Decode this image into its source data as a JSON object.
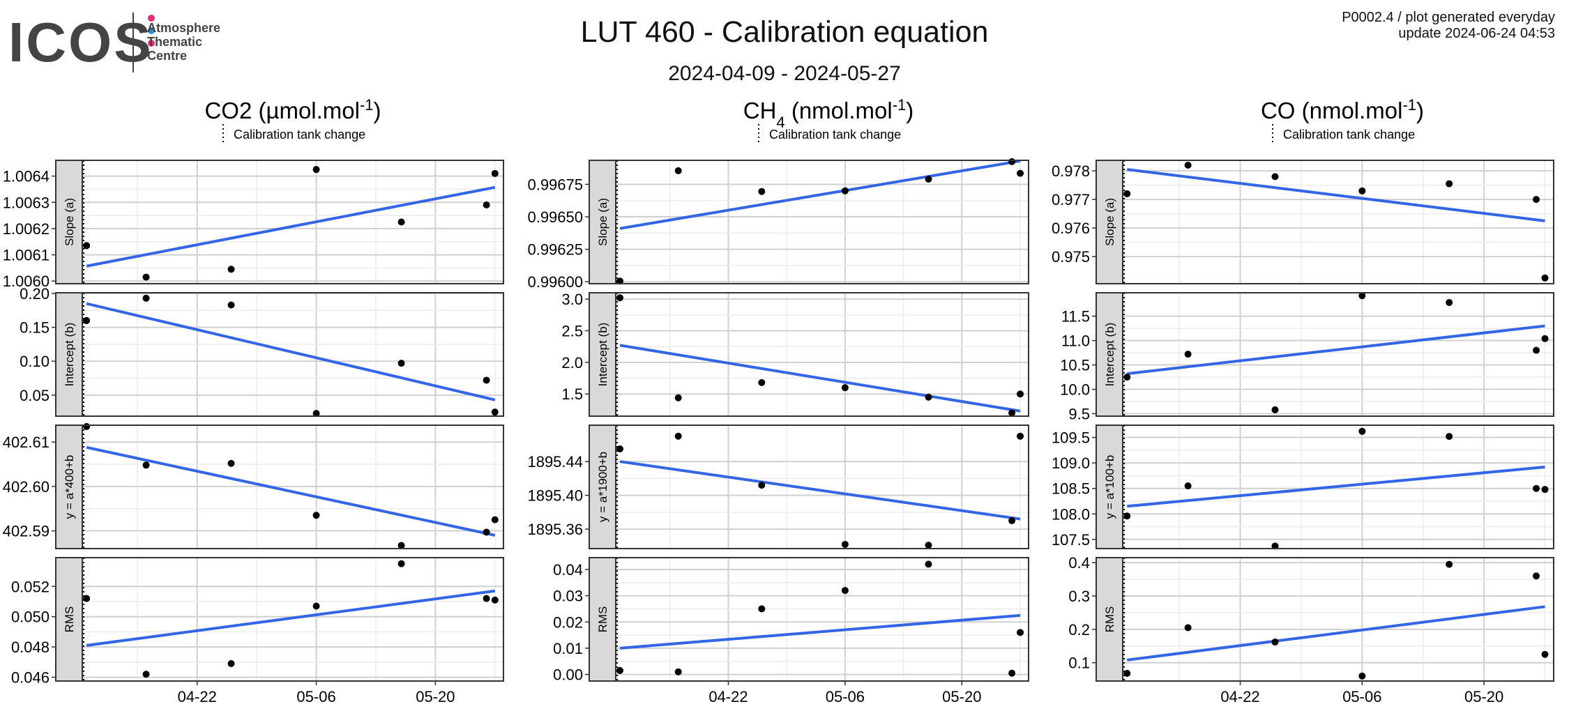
{
  "header": {
    "logo_text": "ICOS",
    "logo_subtitle": "Atmosphere\nThematic\nCentre",
    "logo_colors": [
      "#e0307a",
      "#2a8fd8",
      "#e0307a"
    ],
    "title": "LUT 460 - Calibration equation",
    "subtitle": "2024-04-09 - 2024-05-27",
    "info_line1": "P0002.4 / plot generated everyday",
    "info_line2": "update  2024-06-24 04:53"
  },
  "legend_label": "Calibration tank change",
  "x_ticks": [
    "04-22",
    "05-06",
    "05-20"
  ],
  "colors": {
    "fit_line": "#3366e6",
    "points": "#000000",
    "strip": "#d9d9d9"
  },
  "chart_data": [
    {
      "type": "scatter",
      "species": "CO2",
      "unit_text": "(µmol.mol",
      "unit_exp": "-1",
      "unit_close": ")",
      "panels": [
        {
          "label": "Slope (a)",
          "y_ticks": [
            "1.0060",
            "1.0061",
            "1.0062",
            "1.0063",
            "1.0064"
          ],
          "ylim": [
            1.00599,
            1.00646
          ],
          "x": [
            "2024-04-09",
            "2024-04-09",
            "2024-04-16",
            "2024-04-26",
            "2024-05-06",
            "2024-05-16",
            "2024-05-26",
            "2024-05-27"
          ],
          "y": [
            1.006135,
            1.006135,
            1.006015,
            1.006045,
            1.006425,
            1.006225,
            1.00629,
            1.00641
          ],
          "fit": {
            "x": [
              "2024-04-09",
              "2024-05-27"
            ],
            "y": [
              1.006057,
              1.006357
            ]
          }
        },
        {
          "label": "Intercept (b)",
          "y_ticks": [
            "0.05",
            "0.10",
            "0.15",
            "0.20"
          ],
          "ylim": [
            0.019,
            0.201
          ],
          "x": [
            "2024-04-09",
            "2024-04-09",
            "2024-04-16",
            "2024-04-26",
            "2024-05-06",
            "2024-05-16",
            "2024-05-26",
            "2024-05-27"
          ],
          "y": [
            0.16,
            0.16,
            0.193,
            0.183,
            0.023,
            0.097,
            0.072,
            0.025
          ],
          "fit": {
            "x": [
              "2024-04-09",
              "2024-05-27"
            ],
            "y": [
              0.185,
              0.043
            ]
          }
        },
        {
          "label": "y = a*400+b",
          "y_ticks": [
            "402.59",
            "402.60",
            "402.61"
          ],
          "ylim": [
            402.586,
            402.6138
          ],
          "x": [
            "2024-04-09",
            "2024-04-16",
            "2024-04-26",
            "2024-05-06",
            "2024-05-16",
            "2024-05-26",
            "2024-05-27"
          ],
          "y": [
            402.6135,
            402.6048,
            402.6052,
            402.5935,
            402.5867,
            402.5897,
            402.5925
          ],
          "fit": {
            "x": [
              "2024-04-09",
              "2024-05-27"
            ],
            "y": [
              402.6088,
              402.589
            ]
          }
        },
        {
          "label": "RMS",
          "y_ticks": [
            "0.046",
            "0.048",
            "0.050",
            "0.052"
          ],
          "ylim": [
            0.04575,
            0.0539
          ],
          "x": [
            "2024-04-09",
            "2024-04-09",
            "2024-04-16",
            "2024-04-26",
            "2024-05-06",
            "2024-05-16",
            "2024-05-26",
            "2024-05-27"
          ],
          "y": [
            0.0512,
            0.0512,
            0.0462,
            0.0469,
            0.0507,
            0.0535,
            0.0512,
            0.0511
          ],
          "fit": {
            "x": [
              "2024-04-09",
              "2024-05-27"
            ],
            "y": [
              0.0481,
              0.0517
            ]
          }
        }
      ]
    },
    {
      "type": "scatter",
      "species": "CH",
      "species_sub": "4",
      "unit_text": "(nmol.mol",
      "unit_exp": "-1",
      "unit_close": ")",
      "panels": [
        {
          "label": "Slope (a)",
          "y_ticks": [
            "0.99600",
            "0.99625",
            "0.99650",
            "0.99675"
          ],
          "ylim": [
            0.995985,
            0.996935
          ],
          "x": [
            "2024-04-09",
            "2024-04-16",
            "2024-04-26",
            "2024-05-06",
            "2024-05-16",
            "2024-05-26",
            "2024-05-27"
          ],
          "y": [
            0.996005,
            0.996855,
            0.996695,
            0.9967,
            0.99679,
            0.996925,
            0.996835
          ],
          "fit": {
            "x": [
              "2024-04-09",
              "2024-05-27"
            ],
            "y": [
              0.99641,
              0.99693
            ]
          }
        },
        {
          "label": "Intercept (b)",
          "y_ticks": [
            "1.5",
            "2.0",
            "2.5",
            "3.0"
          ],
          "ylim": [
            1.15,
            3.1
          ],
          "x": [
            "2024-04-09",
            "2024-04-16",
            "2024-04-26",
            "2024-05-06",
            "2024-05-16",
            "2024-05-26",
            "2024-05-27"
          ],
          "y": [
            3.02,
            1.44,
            1.68,
            1.6,
            1.45,
            1.2,
            1.5
          ],
          "fit": {
            "x": [
              "2024-04-09",
              "2024-05-27"
            ],
            "y": [
              2.27,
              1.23
            ]
          }
        },
        {
          "label": "y = a*1900+b",
          "y_ticks": [
            "1895.36",
            "1895.40",
            "1895.44"
          ],
          "ylim": [
            1895.337,
            1895.483
          ],
          "x": [
            "2024-04-09",
            "2024-04-16",
            "2024-04-26",
            "2024-05-06",
            "2024-05-16",
            "2024-05-26",
            "2024-05-27"
          ],
          "y": [
            1895.455,
            1895.47,
            1895.412,
            1895.342,
            1895.341,
            1895.37,
            1895.47
          ],
          "fit": {
            "x": [
              "2024-04-09",
              "2024-05-27"
            ],
            "y": [
              1895.44,
              1895.372
            ]
          }
        },
        {
          "label": "RMS",
          "y_ticks": [
            "0.00",
            "0.01",
            "0.02",
            "0.03",
            "0.04"
          ],
          "ylim": [
            -0.0025,
            0.0445
          ],
          "x": [
            "2024-04-09",
            "2024-04-16",
            "2024-04-26",
            "2024-05-06",
            "2024-05-16",
            "2024-05-26",
            "2024-05-27"
          ],
          "y": [
            0.0015,
            0.001,
            0.025,
            0.032,
            0.042,
            0.0005,
            0.016
          ],
          "fit": {
            "x": [
              "2024-04-09",
              "2024-05-27"
            ],
            "y": [
              0.01,
              0.0225
            ]
          }
        }
      ]
    },
    {
      "type": "scatter",
      "species": "CO",
      "unit_text": "(nmol.mol",
      "unit_exp": "-1",
      "unit_close": ")",
      "panels": [
        {
          "label": "Slope (a)",
          "y_ticks": [
            "0.975",
            "0.976",
            "0.977",
            "0.978"
          ],
          "ylim": [
            0.97405,
            0.97837
          ],
          "x": [
            "2024-04-09",
            "2024-04-16",
            "2024-04-26",
            "2024-05-06",
            "2024-05-16",
            "2024-05-26",
            "2024-05-27"
          ],
          "y": [
            0.9772,
            0.9782,
            0.9778,
            0.9773,
            0.97755,
            0.977,
            0.97425
          ],
          "fit": {
            "x": [
              "2024-04-09",
              "2024-05-27"
            ],
            "y": [
              0.97805,
              0.97625
            ]
          }
        },
        {
          "label": "Intercept (b)",
          "y_ticks": [
            "9.5",
            "10.0",
            "10.5",
            "11.0",
            "11.5"
          ],
          "ylim": [
            9.45,
            11.98
          ],
          "x": [
            "2024-04-09",
            "2024-04-16",
            "2024-04-26",
            "2024-05-06",
            "2024-05-16",
            "2024-05-26",
            "2024-05-27"
          ],
          "y": [
            10.25,
            10.72,
            9.58,
            11.92,
            11.78,
            10.8,
            11.04
          ],
          "fit": {
            "x": [
              "2024-04-09",
              "2024-05-27"
            ],
            "y": [
              10.32,
              11.3
            ]
          }
        },
        {
          "label": "y = a*100+b",
          "y_ticks": [
            "107.5",
            "108.0",
            "108.5",
            "109.0",
            "109.5"
          ],
          "ylim": [
            107.32,
            109.74
          ],
          "x": [
            "2024-04-09",
            "2024-04-16",
            "2024-04-26",
            "2024-05-06",
            "2024-05-16",
            "2024-05-26",
            "2024-05-27"
          ],
          "y": [
            107.96,
            108.55,
            107.37,
            109.62,
            109.52,
            108.5,
            108.48
          ],
          "fit": {
            "x": [
              "2024-04-09",
              "2024-05-27"
            ],
            "y": [
              108.15,
              108.92
            ]
          }
        },
        {
          "label": "RMS",
          "y_ticks": [
            "0.1",
            "0.2",
            "0.3",
            "0.4"
          ],
          "ylim": [
            0.045,
            0.415
          ],
          "x": [
            "2024-04-09",
            "2024-04-16",
            "2024-04-26",
            "2024-05-06",
            "2024-05-16",
            "2024-05-26",
            "2024-05-27"
          ],
          "y": [
            0.068,
            0.205,
            0.162,
            0.06,
            0.395,
            0.36,
            0.125
          ],
          "fit": {
            "x": [
              "2024-04-09",
              "2024-05-27"
            ],
            "y": [
              0.108,
              0.268
            ]
          }
        }
      ]
    }
  ]
}
